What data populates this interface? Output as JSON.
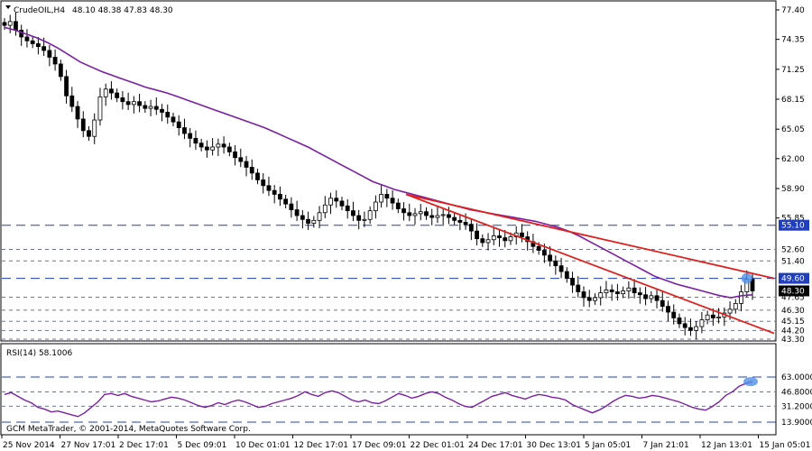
{
  "window": {
    "symbol_tf": "CrudeOIL,H4",
    "ohlc": "48.10 48.38 47.83 48.30",
    "copyright": "GCM MetaTrader, © 2001-2014, MetaQuotes Software Corp."
  },
  "rsi_panel": {
    "title": "RSI(14) 58.1006"
  },
  "chart_data": [
    {
      "type": "candlestick",
      "title": "CrudeOIL,H4",
      "ylim": [
        43.3,
        77.4
      ],
      "grid": false,
      "yticks": [
        "77.40",
        "74.35",
        "71.25",
        "68.15",
        "65.05",
        "62.00",
        "58.90",
        "55.85"
      ],
      "xticks": [
        "25 Nov 2014",
        "27 Nov 17:01",
        "2 Dec 17:01",
        "5 Dec 09:01",
        "10 Dec 01:01",
        "12 Dec 17:01",
        "17 Dec 09:01",
        "22 Dec 01:01",
        "24 Dec 17:01",
        "30 Dec 13:01",
        "5 Jan 05:01",
        "7 Jan 21:01",
        "12 Jan 13:01",
        "15 Jan 05:01"
      ],
      "price_levels": [
        {
          "label": "55.10",
          "value": 55.1,
          "style": "blue-dashed",
          "boxed": true
        },
        {
          "label": "52.60",
          "value": 52.6,
          "style": "gray-dashed",
          "boxed": false
        },
        {
          "label": "51.40",
          "value": 51.4,
          "style": "gray-dashed",
          "boxed": false
        },
        {
          "label": "49.60",
          "value": 49.6,
          "style": "blue-dashed",
          "boxed": true
        },
        {
          "label": "47.65",
          "value": 47.65,
          "style": "gray-dashed",
          "boxed": false
        },
        {
          "label": "46.30",
          "value": 46.3,
          "style": "gray-dashed",
          "boxed": false
        },
        {
          "label": "45.15",
          "value": 45.15,
          "style": "gray-dashed",
          "boxed": false
        },
        {
          "label": "44.20",
          "value": 44.2,
          "style": "gray-dashed",
          "boxed": false
        },
        {
          "label": "43.30",
          "value": 43.3,
          "style": "gray-dashed",
          "boxed": false
        }
      ],
      "current_price": {
        "label": "48.30",
        "value": 48.3
      },
      "close_series": [
        75.8,
        76.2,
        75.3,
        74.6,
        74.2,
        73.9,
        73.6,
        73.2,
        72.5,
        71.8,
        70.5,
        68.5,
        67.4,
        66.1,
        64.9,
        64.3,
        66.0,
        68.4,
        69.2,
        68.8,
        68.3,
        67.9,
        67.6,
        67.9,
        67.5,
        67.2,
        67.4,
        67.1,
        66.8,
        66.3,
        65.8,
        65.2,
        64.6,
        64.1,
        63.6,
        63.2,
        62.9,
        63.2,
        63.5,
        63.2,
        62.7,
        62.1,
        61.7,
        61.1,
        60.5,
        59.8,
        59.2,
        58.7,
        58.3,
        57.8,
        57.3,
        56.7,
        56.1,
        55.7,
        55.3,
        55.6,
        56.4,
        57.2,
        57.9,
        57.6,
        57.1,
        56.6,
        56.1,
        55.6,
        55.7,
        56.6,
        57.5,
        58.3,
        57.9,
        57.4,
        56.8,
        56.4,
        56.1,
        56.3,
        56.5,
        56.1,
        55.9,
        56.1,
        56.2,
        55.9,
        55.6,
        55.4,
        55.2,
        54.5,
        53.7,
        53.3,
        53.6,
        54.0,
        53.8,
        53.5,
        53.9,
        54.3,
        53.9,
        53.4,
        52.9,
        52.5,
        52.0,
        51.4,
        50.9,
        50.3,
        49.6,
        48.9,
        48.2,
        47.6,
        47.3,
        47.6,
        48.1,
        48.4,
        48.2,
        48.0,
        48.3,
        48.6,
        48.1,
        47.9,
        47.5,
        47.8,
        47.3,
        46.7,
        46.1,
        45.5,
        44.9,
        44.5,
        44.2,
        44.6,
        45.3,
        45.8,
        45.5,
        45.6,
        46.0,
        46.4,
        47.0,
        48.2,
        49.5,
        48.3
      ],
      "series": [
        {
          "name": "Moving Average",
          "color": "#7b1fa2",
          "values": [
            75.6,
            75.3,
            74.9,
            74.5,
            74.0,
            73.4,
            72.7,
            72.0,
            71.5,
            71.0,
            70.6,
            70.2,
            69.8,
            69.4,
            69.1,
            68.8,
            68.4,
            68.0,
            67.6,
            67.2,
            66.8,
            66.4,
            66.0,
            65.6,
            65.2,
            64.7,
            64.2,
            63.7,
            63.2,
            62.6,
            62.0,
            61.4,
            60.8,
            60.2,
            59.6,
            59.2,
            58.8,
            58.5,
            58.2,
            57.9,
            57.6,
            57.3,
            57.0,
            56.7,
            56.5,
            56.3,
            56.1,
            55.9,
            55.7,
            55.5,
            55.2,
            54.9,
            54.5,
            54.0,
            53.4,
            52.8,
            52.2,
            51.6,
            51.0,
            50.4,
            49.8,
            49.4,
            49.0,
            48.7,
            48.4,
            48.1,
            47.8,
            47.6,
            47.8,
            47.9
          ]
        },
        {
          "name": "Upper Trendline",
          "color": "#e0201c",
          "values": [
            58.3,
            55.2,
            49.6
          ]
        },
        {
          "name": "Lower Trendline",
          "color": "#e0201c",
          "values": [
            58.3,
            55.2,
            43.9
          ]
        }
      ]
    },
    {
      "type": "line",
      "title": "RSI(14) 58.1006",
      "ylim": [
        13.9,
        63.0
      ],
      "yticks": [
        "63.0000",
        "46.8000",
        "31.2000",
        "13.9000"
      ],
      "series": [
        {
          "name": "RSI(14)",
          "color": "#7b1fa2",
          "values": [
            44,
            46,
            42,
            38,
            35,
            30,
            28,
            25,
            26,
            24,
            22,
            20,
            24,
            30,
            36,
            44,
            45,
            43,
            45,
            42,
            40,
            38,
            36,
            37,
            39,
            41,
            40,
            38,
            35,
            32,
            30,
            32,
            35,
            33,
            36,
            38,
            36,
            33,
            30,
            31,
            34,
            36,
            38,
            40,
            43,
            47,
            44,
            42,
            46,
            48,
            46,
            42,
            38,
            36,
            38,
            35,
            34,
            37,
            41,
            45,
            43,
            40,
            42,
            45,
            47,
            45,
            41,
            38,
            34,
            31,
            30,
            34,
            38,
            42,
            44,
            46,
            43,
            41,
            39,
            42,
            44,
            43,
            41,
            40,
            38,
            33,
            30,
            27,
            24,
            27,
            31,
            36,
            40,
            43,
            42,
            40,
            41,
            43,
            42,
            40,
            38,
            36,
            33,
            30,
            28,
            27,
            31,
            36,
            43,
            47,
            53,
            56,
            58
          ]
        }
      ]
    }
  ]
}
